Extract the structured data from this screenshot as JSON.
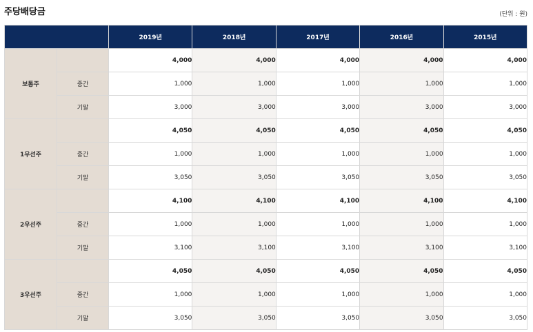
{
  "title": "주당배당금",
  "unit": "(단위 : 원)",
  "columns": [
    "2019년",
    "2018년",
    "2017년",
    "2016년",
    "2015년"
  ],
  "groups": [
    {
      "name": "보통주",
      "rows": [
        {
          "label": "",
          "values": [
            "4,000",
            "4,000",
            "4,000",
            "4,000",
            "4,000"
          ]
        },
        {
          "label": "중간",
          "values": [
            "1,000",
            "1,000",
            "1,000",
            "1,000",
            "1,000"
          ]
        },
        {
          "label": "기말",
          "values": [
            "3,000",
            "3,000",
            "3,000",
            "3,000",
            "3,000"
          ]
        }
      ]
    },
    {
      "name": "1우선주",
      "rows": [
        {
          "label": "",
          "values": [
            "4,050",
            "4,050",
            "4,050",
            "4,050",
            "4,050"
          ]
        },
        {
          "label": "중간",
          "values": [
            "1,000",
            "1,000",
            "1,000",
            "1,000",
            "1,000"
          ]
        },
        {
          "label": "기말",
          "values": [
            "3,050",
            "3,050",
            "3,050",
            "3,050",
            "3,050"
          ]
        }
      ]
    },
    {
      "name": "2우선주",
      "rows": [
        {
          "label": "",
          "values": [
            "4,100",
            "4,100",
            "4,100",
            "4,100",
            "4,100"
          ]
        },
        {
          "label": "중간",
          "values": [
            "1,000",
            "1,000",
            "1,000",
            "1,000",
            "1,000"
          ]
        },
        {
          "label": "기말",
          "values": [
            "3,100",
            "3,100",
            "3,100",
            "3,100",
            "3,100"
          ]
        }
      ]
    },
    {
      "name": "3우선주",
      "rows": [
        {
          "label": "",
          "values": [
            "4,050",
            "4,050",
            "4,050",
            "4,050",
            "4,050"
          ]
        },
        {
          "label": "중간",
          "values": [
            "1,000",
            "1,000",
            "1,000",
            "1,000",
            "1,000"
          ]
        },
        {
          "label": "기말",
          "values": [
            "3,050",
            "3,050",
            "3,050",
            "3,050",
            "3,050"
          ]
        }
      ]
    }
  ]
}
